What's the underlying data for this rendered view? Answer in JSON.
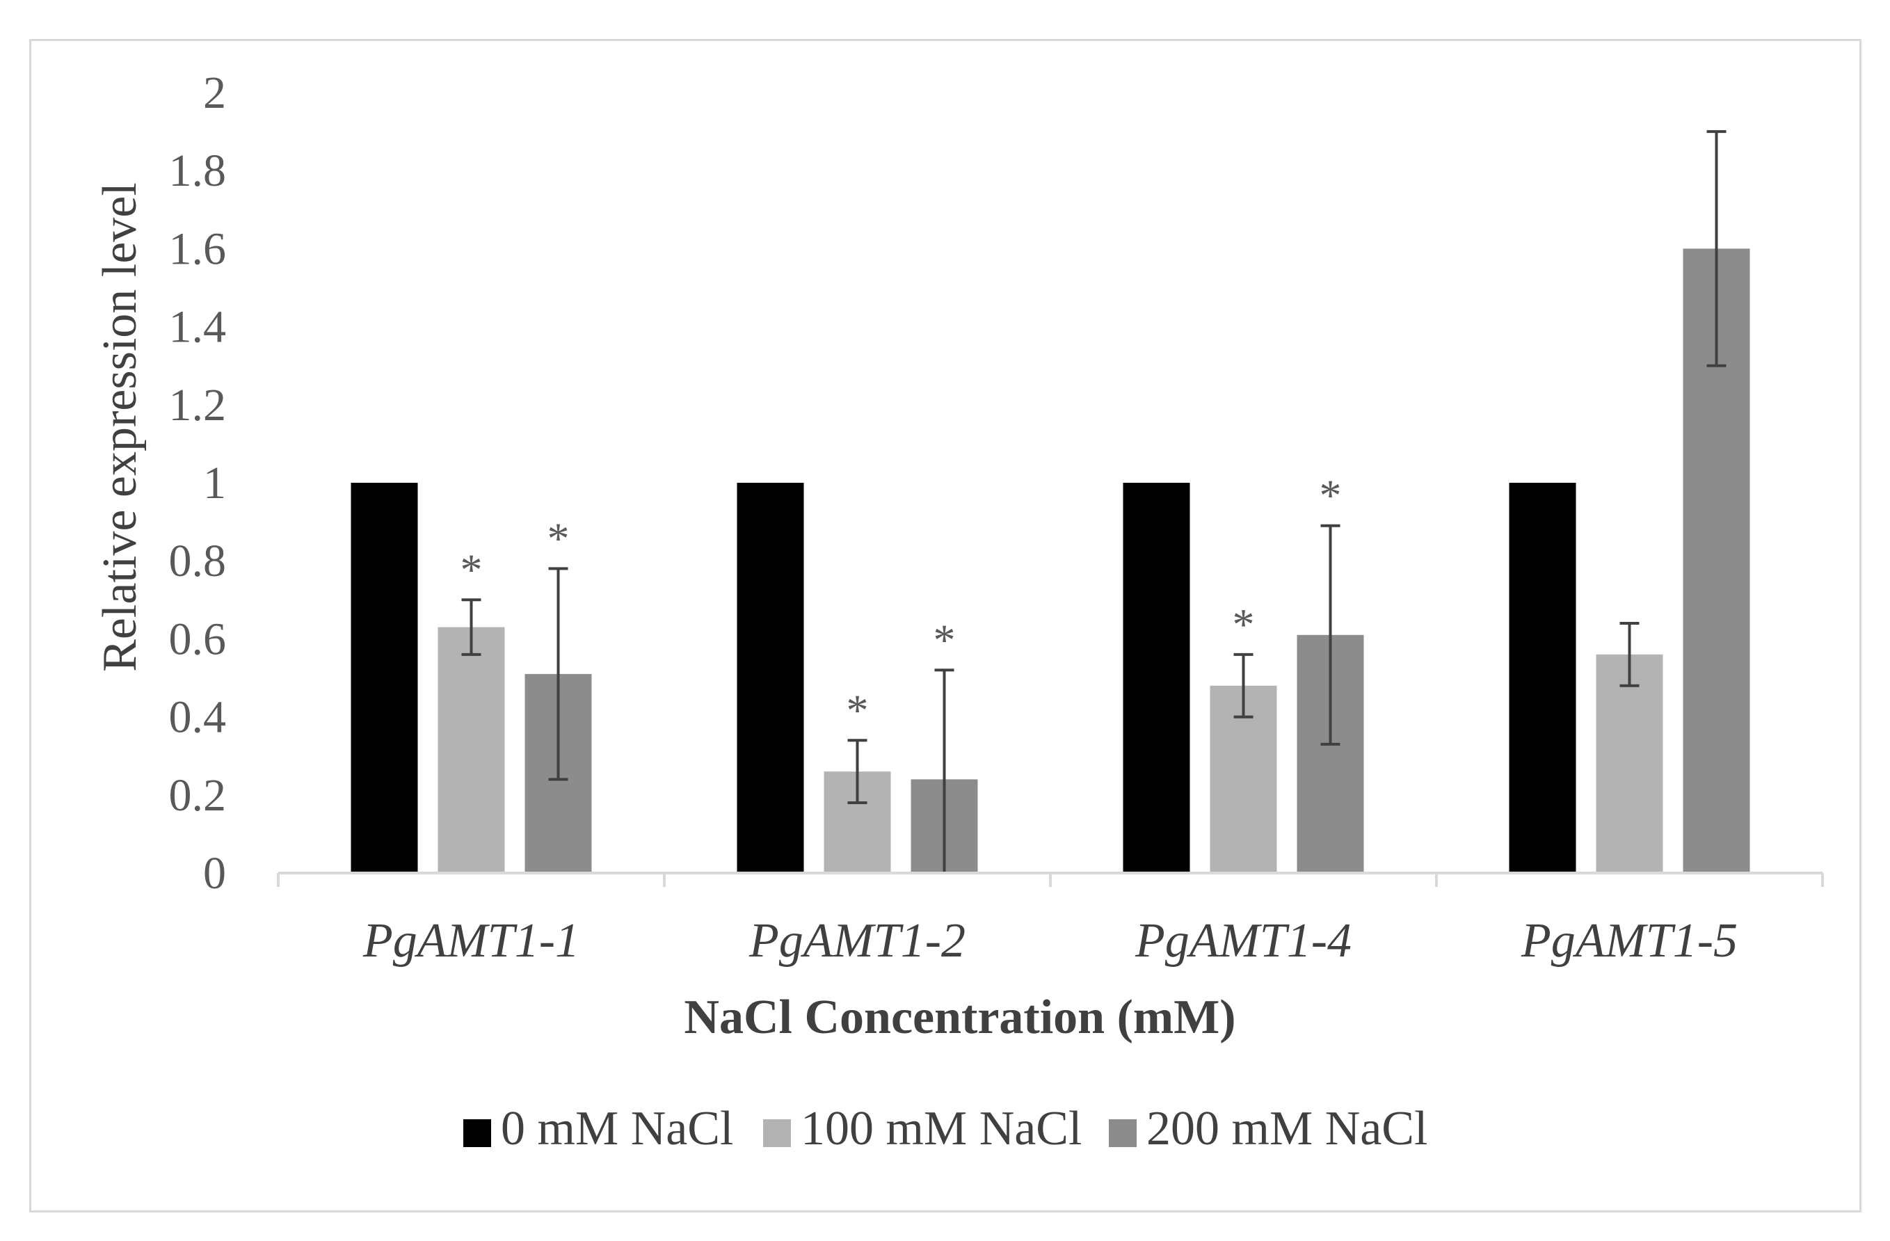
{
  "chart_data": {
    "type": "bar",
    "title": "",
    "xlabel": "NaCl Concentration (mM)",
    "ylabel": "Relative expression level",
    "ylim": [
      0,
      2
    ],
    "yticks": [
      "0",
      "0.2",
      "0.4",
      "0.6",
      "0.8",
      "1",
      "1.2",
      "1.4",
      "1.6",
      "1.8",
      "2"
    ],
    "ytick_values": [
      0,
      0.2,
      0.4,
      0.6,
      0.8,
      1,
      1.2,
      1.4,
      1.6,
      1.8,
      2
    ],
    "grid": false,
    "legend_position": "bottom",
    "categories": [
      "PgAMT1-1",
      "PgAMT1-2",
      "PgAMT1-4",
      "PgAMT1-5"
    ],
    "series": [
      {
        "name": "0 mM NaCl",
        "color": "#000000",
        "values": [
          1.0,
          1.0,
          1.0,
          1.0
        ],
        "errors": [
          0,
          0,
          0,
          0
        ],
        "significance": [
          "",
          "",
          "",
          ""
        ]
      },
      {
        "name": "100 mM NaCl",
        "color": "#b3b3b3",
        "values": [
          0.63,
          0.26,
          0.48,
          0.56
        ],
        "errors": [
          0.07,
          0.08,
          0.08,
          0.08
        ],
        "significance": [
          "*",
          "*",
          "*",
          ""
        ]
      },
      {
        "name": "200 mM NaCl",
        "color": "#8c8c8c",
        "values": [
          0.51,
          0.24,
          0.61,
          1.6
        ],
        "errors": [
          0.27,
          0.28,
          0.28,
          0.3
        ],
        "significance": [
          "*",
          "*",
          "*",
          ""
        ]
      }
    ]
  }
}
